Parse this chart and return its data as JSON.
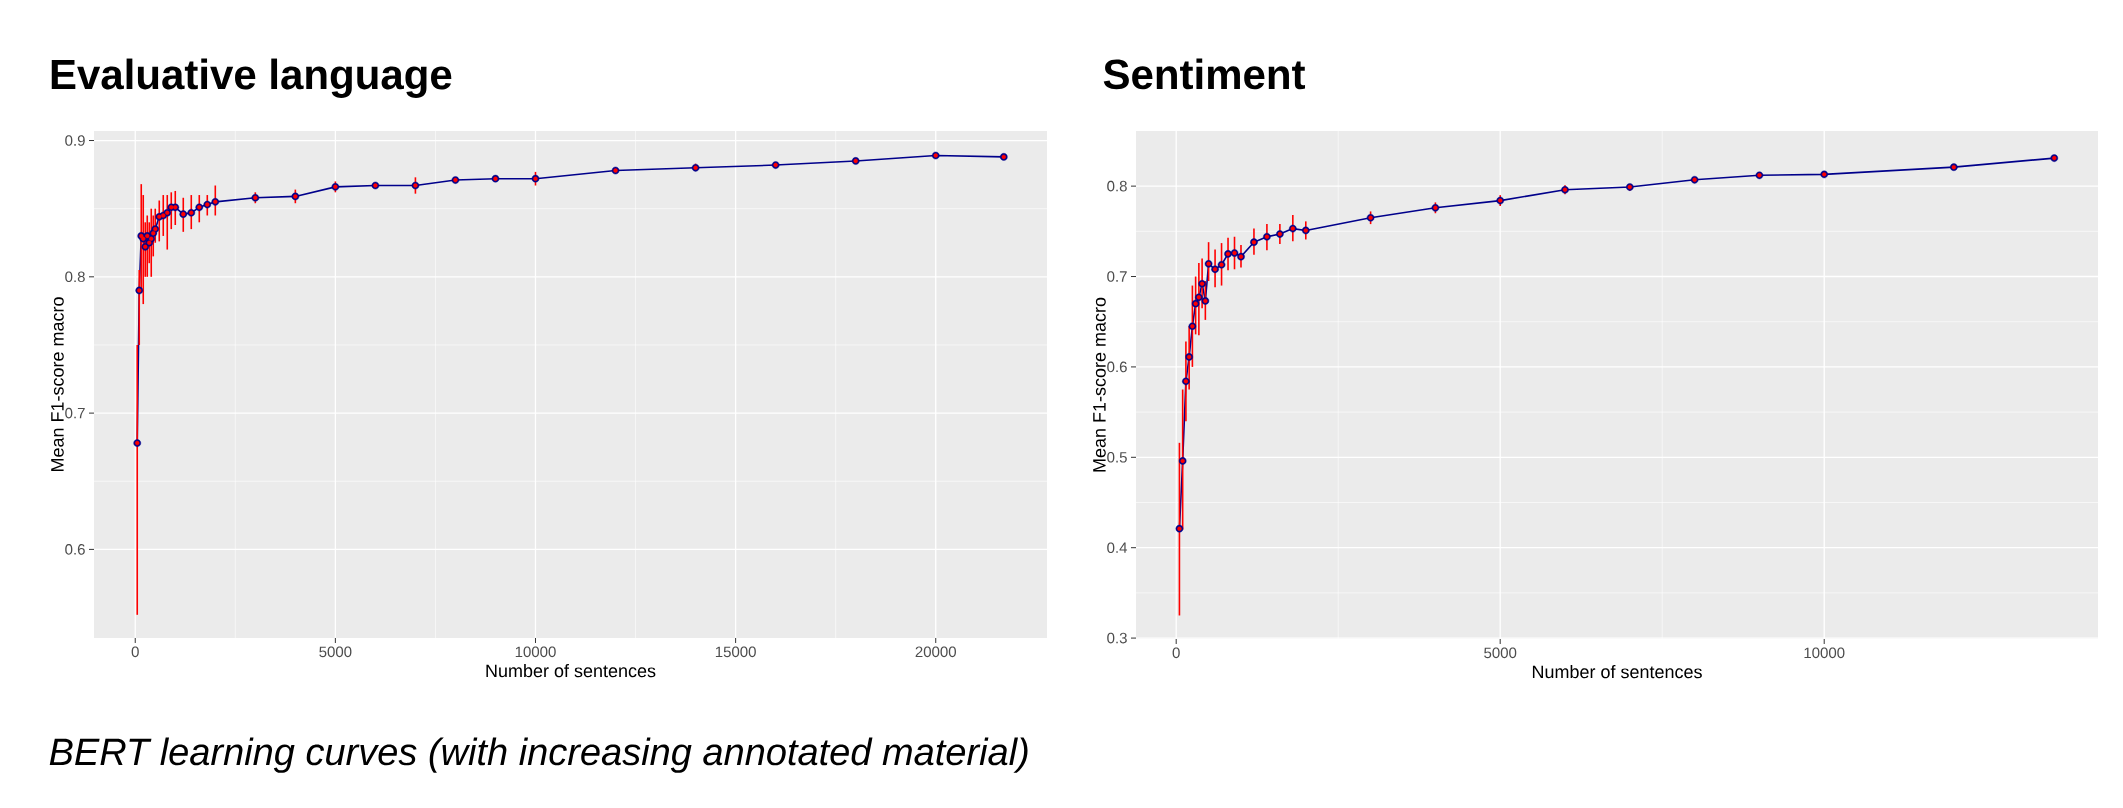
{
  "chart_data": [
    {
      "type": "line",
      "title": "Evaluative language",
      "xlabel": "Number of sentences",
      "ylabel": "Mean F1-score macro",
      "annotations": [
        "BERT learning curves (with increasing annotated material)"
      ],
      "x": [
        50,
        100,
        150,
        200,
        250,
        300,
        350,
        400,
        450,
        500,
        600,
        700,
        800,
        900,
        1000,
        1200,
        1400,
        1600,
        1800,
        2000,
        3000,
        4000,
        5000,
        6000,
        7000,
        8000,
        9000,
        10000,
        12000,
        14000,
        16000,
        18000,
        20000,
        21700
      ],
      "series": [
        {
          "color": "#00008b",
          "values": [
            0.678,
            0.79,
            0.83,
            0.828,
            0.822,
            0.83,
            0.825,
            0.828,
            0.832,
            0.835,
            0.844,
            0.845,
            0.847,
            0.851,
            0.851,
            0.846,
            0.847,
            0.851,
            0.853,
            0.855,
            0.858,
            0.859,
            0.866,
            0.867,
            0.867,
            0.871,
            0.872,
            0.872,
            0.878,
            0.88,
            0.882,
            0.885,
            0.889,
            0.888
          ],
          "errors": [
            [
              0.552,
              0.75
            ],
            [
              0.75,
              0.805
            ],
            [
              0.79,
              0.868
            ],
            [
              0.78,
              0.86
            ],
            [
              0.8,
              0.84
            ],
            [
              0.8,
              0.845
            ],
            [
              0.81,
              0.84
            ],
            [
              0.8,
              0.85
            ],
            [
              0.815,
              0.845
            ],
            [
              0.825,
              0.85
            ],
            [
              0.826,
              0.856
            ],
            [
              0.83,
              0.86
            ],
            [
              0.82,
              0.86
            ],
            [
              0.835,
              0.862
            ],
            [
              0.838,
              0.863
            ],
            [
              0.833,
              0.858
            ],
            [
              0.835,
              0.86
            ],
            [
              0.84,
              0.86
            ],
            [
              0.845,
              0.86
            ],
            [
              0.845,
              0.867
            ],
            [
              0.854,
              0.862
            ],
            [
              0.854,
              0.864
            ],
            [
              0.862,
              0.87
            ],
            [
              0.865,
              0.869
            ],
            [
              0.861,
              0.873
            ],
            [
              0.869,
              0.873
            ],
            [
              0.87,
              0.874
            ],
            [
              0.867,
              0.877
            ],
            [
              0.876,
              0.88
            ],
            [
              0.878,
              0.883
            ],
            null,
            [
              0.883,
              0.887
            ],
            null,
            [
              0.887,
              0.89
            ]
          ]
        }
      ],
      "xlim": [
        -1030,
        22780
      ],
      "ylim": [
        0.535,
        0.907
      ],
      "xticks": [
        0,
        5000,
        10000,
        15000,
        20000
      ],
      "yticks": [
        0.6,
        0.7,
        0.8,
        0.9
      ],
      "grid": true,
      "marker": "circle",
      "line_style": "solid"
    },
    {
      "type": "line",
      "title": "Sentiment",
      "xlabel": "Number of sentences",
      "ylabel": "Mean F1-score macro",
      "x": [
        50,
        100,
        150,
        200,
        250,
        300,
        350,
        400,
        450,
        500,
        600,
        700,
        800,
        900,
        1000,
        1200,
        1400,
        1600,
        1800,
        2000,
        3000,
        4000,
        5000,
        6000,
        7000,
        8000,
        9000,
        10000,
        12000,
        13550
      ],
      "series": [
        {
          "color": "#00008b",
          "values": [
            0.421,
            0.496,
            0.584,
            0.611,
            0.645,
            0.67,
            0.677,
            0.692,
            0.673,
            0.714,
            0.708,
            0.713,
            0.725,
            0.726,
            0.722,
            0.738,
            0.744,
            0.747,
            0.753,
            0.751,
            0.765,
            0.776,
            0.784,
            0.796,
            0.799,
            0.807,
            0.812,
            0.813,
            0.821,
            0.831
          ],
          "errors": [
            [
              0.325,
              0.516
            ],
            [
              0.42,
              0.575
            ],
            [
              0.54,
              0.628
            ],
            [
              0.575,
              0.645
            ],
            [
              0.6,
              0.69
            ],
            [
              0.636,
              0.7
            ],
            [
              0.635,
              0.715
            ],
            [
              0.665,
              0.72
            ],
            [
              0.652,
              0.695
            ],
            [
              0.695,
              0.738
            ],
            [
              0.688,
              0.73
            ],
            [
              0.69,
              0.737
            ],
            [
              0.707,
              0.743
            ],
            [
              0.708,
              0.744
            ],
            [
              0.71,
              0.735
            ],
            [
              0.724,
              0.753
            ],
            [
              0.729,
              0.758
            ],
            [
              0.736,
              0.758
            ],
            [
              0.739,
              0.768
            ],
            [
              0.741,
              0.761
            ],
            [
              0.758,
              0.772
            ],
            [
              0.77,
              0.782
            ],
            [
              0.778,
              0.79
            ],
            [
              0.791,
              0.801
            ],
            [
              0.795,
              0.802
            ],
            [
              0.805,
              0.809
            ],
            [
              0.81,
              0.814
            ],
            [
              0.81,
              0.816
            ],
            [
              0.818,
              0.824
            ],
            [
              0.828,
              0.834
            ]
          ]
        }
      ],
      "xlim": [
        -620,
        14225
      ],
      "ylim": [
        0.299,
        0.861
      ],
      "xticks": [
        0,
        5000,
        10000
      ],
      "yticks": [
        0.3,
        0.4,
        0.5,
        0.6,
        0.7,
        0.8
      ],
      "grid": true,
      "marker": "circle",
      "line_style": "solid"
    }
  ]
}
